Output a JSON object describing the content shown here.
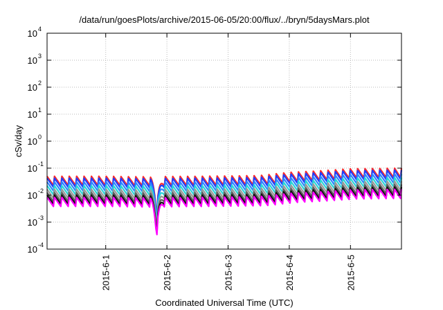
{
  "chart_data": {
    "type": "line",
    "title": "/data/run/goesPlots/archive/2015-06-05/20:00/flux/../bryn/5daysMars.plot",
    "xlabel": "Coordinated Universal Time (UTC)",
    "ylabel": "cSv/day",
    "yscale": "log",
    "ylim": [
      0.0001,
      10000
    ],
    "xlim": [
      "2015-05-31T01:00",
      "2015-06-05T20:00"
    ],
    "grid": true,
    "legend": "none",
    "x_ticks": [
      {
        "x": "2015-06-01T00:00",
        "label": "2015-6-1"
      },
      {
        "x": "2015-06-02T00:00",
        "label": "2015-6-2"
      },
      {
        "x": "2015-06-03T00:00",
        "label": "2015-6-3"
      },
      {
        "x": "2015-06-04T00:00",
        "label": "2015-6-4"
      },
      {
        "x": "2015-06-05T00:00",
        "label": "2015-6-5"
      }
    ],
    "y_ticks": [
      {
        "value": 0.0001,
        "base": "10",
        "exp": "-4"
      },
      {
        "value": 0.001,
        "base": "10",
        "exp": "-3"
      },
      {
        "value": 0.01,
        "base": "10",
        "exp": "-2"
      },
      {
        "value": 0.1,
        "base": "10",
        "exp": "-1"
      },
      {
        "value": 1,
        "base": "10",
        "exp": "0"
      },
      {
        "value": 10,
        "base": "10",
        "exp": "1"
      },
      {
        "value": 100,
        "base": "10",
        "exp": "2"
      },
      {
        "value": 1000,
        "base": "10",
        "exp": "3"
      },
      {
        "value": 10000,
        "base": "10",
        "exp": "4"
      }
    ],
    "pattern": {
      "period_hours": 2.9,
      "first_peak": "2015-05-31T01:00",
      "peak_values": [
        [
          "2015-05-31T01:00",
          0.05
        ],
        [
          "2015-06-01T00:00",
          0.05
        ],
        [
          "2015-06-01T12:00",
          0.048
        ],
        [
          "2015-06-02T12:00",
          0.05
        ],
        [
          "2015-06-03T12:00",
          0.053
        ],
        [
          "2015-06-04T00:00",
          0.07
        ],
        [
          "2015-06-04T12:00",
          0.08
        ],
        [
          "2015-06-05T00:00",
          0.095
        ],
        [
          "2015-06-05T20:00",
          0.1
        ]
      ],
      "dip_at": "2015-06-01T20:00",
      "dip_depth_factor": 0.09
    },
    "series": [
      {
        "color": "#ff2a2a",
        "ratio": 1.0
      },
      {
        "color": "#1f3fff",
        "ratio": 0.85
      },
      {
        "color": "#2d86ff",
        "ratio": 0.62
      },
      {
        "color": "#28d6d6",
        "ratio": 0.45
      },
      {
        "color": "#9a9a9a",
        "ratio": 0.33
      },
      {
        "color": "#606060",
        "ratio": 0.25
      },
      {
        "color": "#111111",
        "ratio": 0.2
      },
      {
        "color": "#ff00ff",
        "ratio": 0.165
      }
    ]
  }
}
